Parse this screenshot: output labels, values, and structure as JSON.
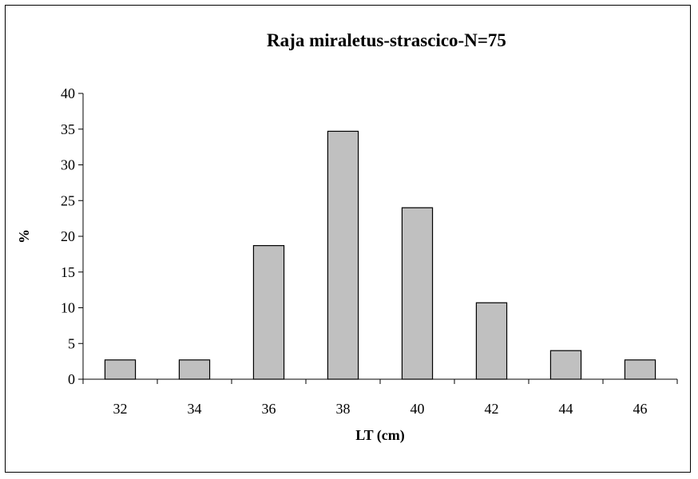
{
  "chart_data": {
    "type": "bar",
    "title": "Raja miraletus-strascico-N=75",
    "xlabel": "LT (cm)",
    "ylabel": "%",
    "categories": [
      "32",
      "34",
      "36",
      "38",
      "40",
      "42",
      "44",
      "46"
    ],
    "values": [
      2.7,
      2.7,
      18.7,
      34.7,
      24.0,
      10.7,
      4.0,
      2.7
    ],
    "ylim": [
      0,
      40
    ],
    "yticks": [
      0,
      5,
      10,
      15,
      20,
      25,
      30,
      35,
      40
    ],
    "grid": false,
    "legend": "none",
    "bar_color": "#c0c0c0",
    "bar_edge_color": "#000000"
  }
}
